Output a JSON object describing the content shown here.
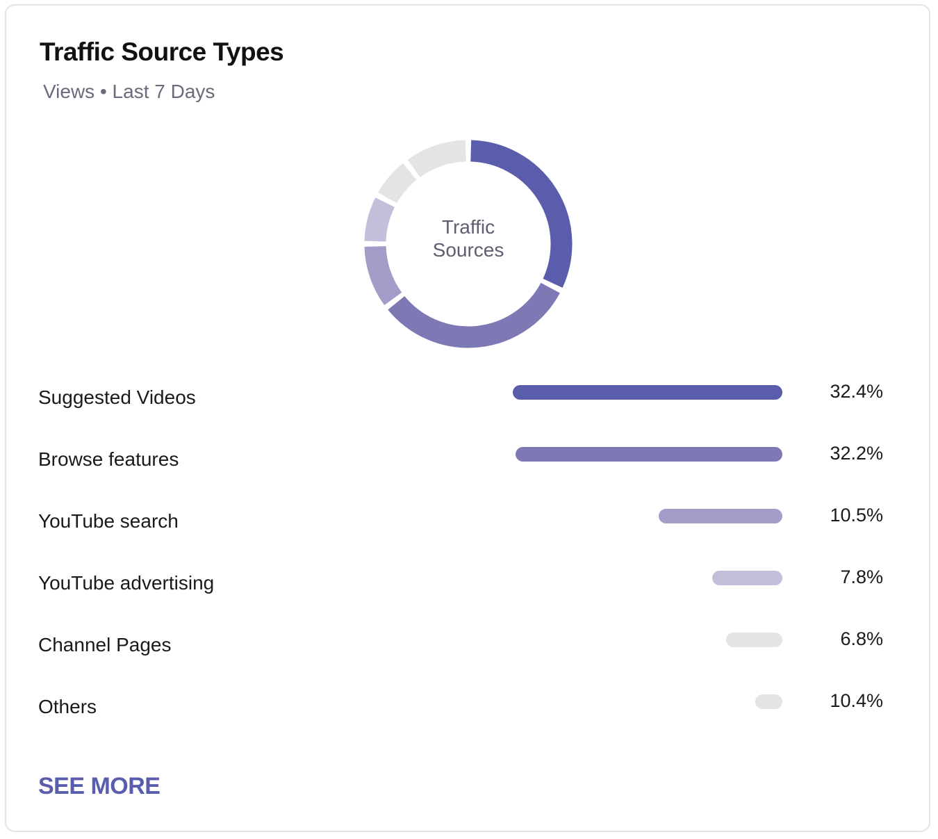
{
  "card": {
    "title": "Traffic Source Types",
    "subtitle": "Views • Last 7 Days",
    "see_more_label": "SEE MORE"
  },
  "chart_data": {
    "type": "bar",
    "center_label": [
      "Traffic",
      "Sources"
    ],
    "categories": [
      "Suggested Videos",
      "Browse features",
      "YouTube search",
      "YouTube advertising",
      "Channel Pages",
      "Others"
    ],
    "values": [
      32.4,
      32.2,
      10.5,
      7.8,
      6.8,
      10.4
    ],
    "value_labels": [
      "32.4%",
      "32.2%",
      "10.5%",
      "7.8%",
      "6.8%",
      "10.4%"
    ],
    "colors": [
      "#5a5dab",
      "#7d79b5",
      "#a19dc8",
      "#c3bfdb",
      "#e4e4e7",
      "#e4e4e7"
    ],
    "bar_fill": [
      1.0,
      0.99,
      0.46,
      0.26,
      0.21,
      0.1
    ],
    "donut_segments": [
      {
        "value": 32.4,
        "color": "#5a5dab"
      },
      {
        "value": 32.2,
        "color": "#7d79b5"
      },
      {
        "value": 10.5,
        "color": "#a19dc8"
      },
      {
        "value": 7.8,
        "color": "#c3bfdb"
      },
      {
        "value": 6.8,
        "color": "#e4e4e7"
      },
      {
        "value": 10.4,
        "color": "#e4e4e7"
      }
    ]
  }
}
